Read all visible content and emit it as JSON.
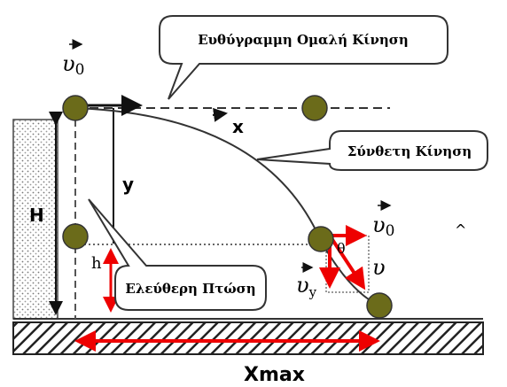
{
  "callouts": {
    "uniform_motion": "Ευθύγραμμη Ομαλή Κίνηση",
    "compound_motion": "Σύνθετη Κίνηση",
    "free_fall": "Ελεύθερη Πτώση"
  },
  "labels": {
    "v0_top": {
      "symbol": "υ",
      "subscript": "0"
    },
    "x": "x",
    "y": "y",
    "H": "H",
    "h": "h",
    "theta": "θ",
    "v0_right": {
      "symbol": "υ",
      "subscript": "0"
    },
    "v": "υ",
    "vy": {
      "symbol": "υ",
      "subscript": "y"
    },
    "xmax": "Xmax",
    "caret": "^"
  }
}
